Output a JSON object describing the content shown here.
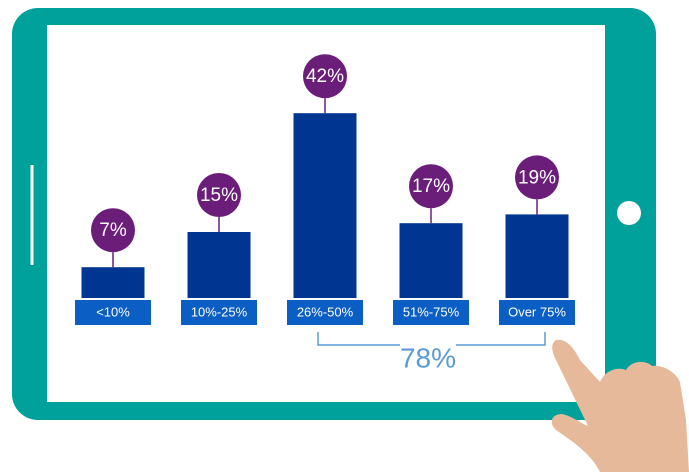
{
  "chart_data": {
    "type": "bar",
    "categories": [
      "<10%",
      "10%-25%",
      "26%-50%",
      "51%-75%",
      "Over 75%"
    ],
    "values": [
      7,
      15,
      42,
      17,
      19
    ],
    "value_labels": [
      "7%",
      "15%",
      "42%",
      "17%",
      "19%"
    ],
    "color": "#003591",
    "annotation": "78%"
  }
}
